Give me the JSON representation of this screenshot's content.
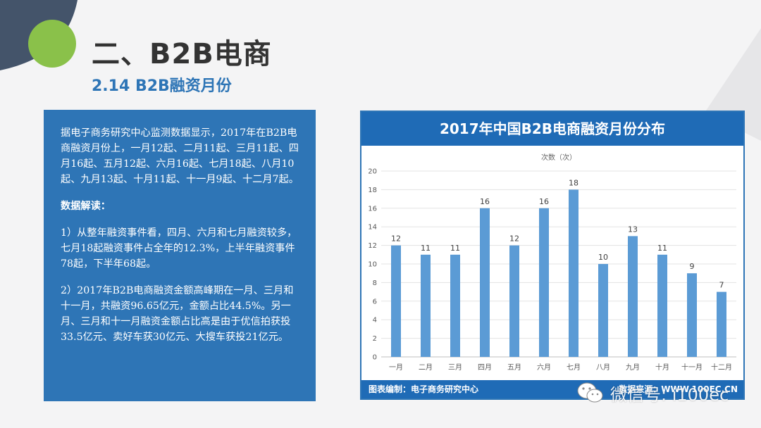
{
  "slide": {
    "title": "二、B2B电商",
    "subtitle": "2.14 B2B融资月份"
  },
  "panel": {
    "paragraph1": "据电子商务研究中心监测数据显示，2017年在B2B电商融资月份上，一月12起、二月11起、三月11起、四月16起、五月12起、六月16起、七月18起、八月10起、九月13起、十月11起、十一月9起、十二月7起。",
    "heading": "数据解读：",
    "paragraph2": "1）从整年融资事件看，四月、六月和七月融资较多，七月18起融资事件占全年的12.3%，上半年融资事件78起，下半年68起。",
    "paragraph3": "2）2017年B2B电商融资金额高峰期在一月、三月和十一月，共融资96.65亿元，金额占比44.5%。另一月、三月和十一月融资金额占比高是由于优信拍获投33.5亿元、卖好车获30亿元、大搜车获投21亿元。"
  },
  "chart_header": "2017年中国B2B电商融资月份分布",
  "footer": {
    "left": "图表编制：电子商务研究中心",
    "right": "数据来源：WWW.100EC.CN"
  },
  "watermark": "微信号: i100ec",
  "colors": {
    "bar": "#5b9bd5",
    "header": "#1f6bb6",
    "panel": "#2e75b6"
  },
  "chart_data": {
    "type": "bar",
    "title": "2017年中国B2B电商融资月份分布",
    "ylabel": "次数（次）",
    "categories": [
      "一月",
      "二月",
      "三月",
      "四月",
      "五月",
      "六月",
      "七月",
      "八月",
      "九月",
      "十月",
      "十一月",
      "十二月"
    ],
    "values": [
      12,
      11,
      11,
      16,
      12,
      16,
      18,
      10,
      13,
      11,
      9,
      7
    ],
    "ylim": [
      0,
      20
    ],
    "yticks": [
      0,
      2,
      4,
      6,
      8,
      10,
      12,
      14,
      16,
      18,
      20
    ],
    "grid": true
  }
}
